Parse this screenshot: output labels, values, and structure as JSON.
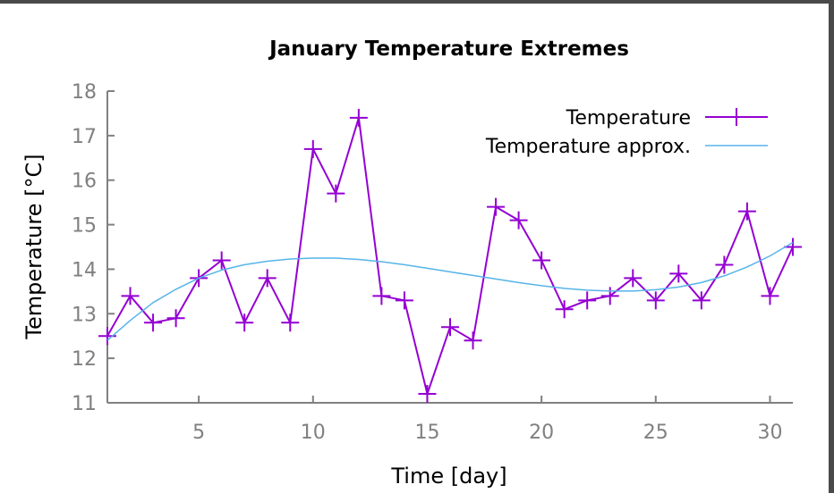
{
  "chart_data": {
    "type": "line",
    "title": "January Temperature Extremes",
    "xlabel": "Time [day]",
    "ylabel": "Temperature [°C]",
    "xlim": [
      1,
      31
    ],
    "ylim": [
      11,
      18
    ],
    "xticks": [
      5,
      10,
      15,
      20,
      25,
      30
    ],
    "yticks": [
      11,
      12,
      13,
      14,
      15,
      16,
      17,
      18
    ],
    "legend_position": "top-right",
    "grid": false,
    "colors": {
      "temperature": "#9400d3",
      "approx": "#56b4e9",
      "axis": "#808080",
      "frame": "#4a4a4a"
    },
    "series": [
      {
        "name": "Temperature",
        "style": "line-with-plus-markers",
        "x": [
          1,
          2,
          3,
          4,
          5,
          6,
          7,
          8,
          9,
          10,
          11,
          12,
          13,
          14,
          15,
          16,
          17,
          18,
          19,
          20,
          21,
          22,
          23,
          24,
          25,
          26,
          27,
          28,
          29,
          30,
          31
        ],
        "values": [
          12.5,
          13.4,
          12.8,
          12.9,
          13.8,
          14.2,
          12.8,
          13.8,
          12.8,
          16.7,
          15.7,
          17.4,
          13.4,
          13.3,
          11.2,
          12.7,
          12.4,
          15.4,
          15.1,
          14.2,
          13.1,
          13.3,
          13.4,
          13.8,
          13.3,
          13.9,
          13.3,
          14.1,
          15.3,
          13.4,
          14.5
        ]
      },
      {
        "name": "Temperature approx.",
        "style": "smooth-line",
        "x": [
          1,
          2,
          3,
          4,
          5,
          6,
          7,
          8,
          9,
          10,
          11,
          12,
          13,
          14,
          15,
          16,
          17,
          18,
          19,
          20,
          21,
          22,
          23,
          24,
          25,
          26,
          27,
          28,
          29,
          30,
          31
        ],
        "values": [
          12.4,
          12.85,
          13.25,
          13.55,
          13.8,
          13.98,
          14.1,
          14.18,
          14.23,
          14.25,
          14.25,
          14.22,
          14.17,
          14.1,
          14.02,
          13.94,
          13.86,
          13.78,
          13.7,
          13.63,
          13.57,
          13.53,
          13.51,
          13.51,
          13.54,
          13.6,
          13.7,
          13.85,
          14.05,
          14.3,
          14.6
        ]
      }
    ]
  }
}
